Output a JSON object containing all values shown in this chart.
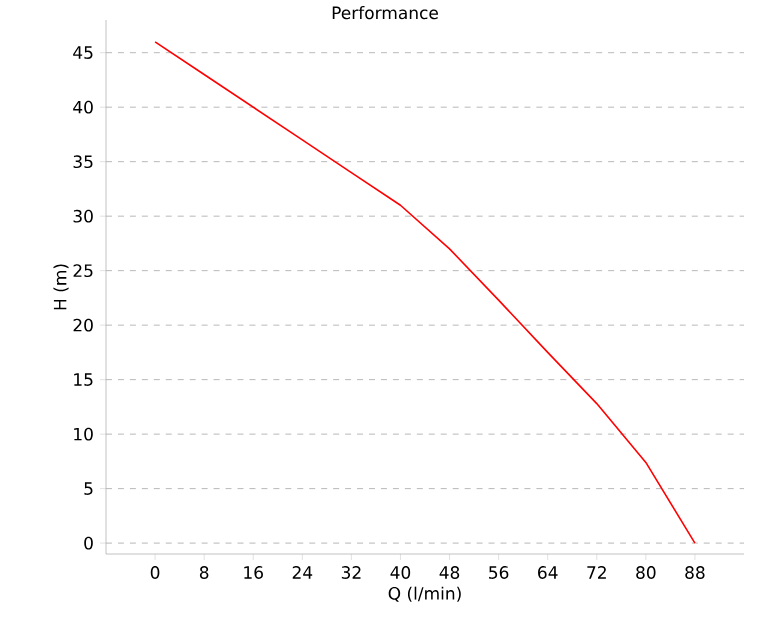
{
  "chart_data": {
    "type": "line",
    "title": "Performance",
    "xlabel": "Q (l/min)",
    "ylabel": "H (m)",
    "x": [
      0,
      8,
      16,
      24,
      32,
      40,
      48,
      56,
      64,
      72,
      80,
      88
    ],
    "series": [
      {
        "color": "#ff0000",
        "values": [
          46,
          43,
          40,
          37,
          34,
          31,
          27,
          22.3,
          17.5,
          12.8,
          7.4,
          0
        ]
      }
    ],
    "xlim": [
      -8,
      96
    ],
    "ylim": [
      -1,
      48
    ],
    "xticks": [
      0,
      8,
      16,
      24,
      32,
      40,
      48,
      56,
      64,
      72,
      80,
      88
    ],
    "yticks": [
      0,
      5,
      10,
      15,
      20,
      25,
      30,
      35,
      40,
      45
    ],
    "grid": "y",
    "marker": "none",
    "line_style": "solid"
  }
}
